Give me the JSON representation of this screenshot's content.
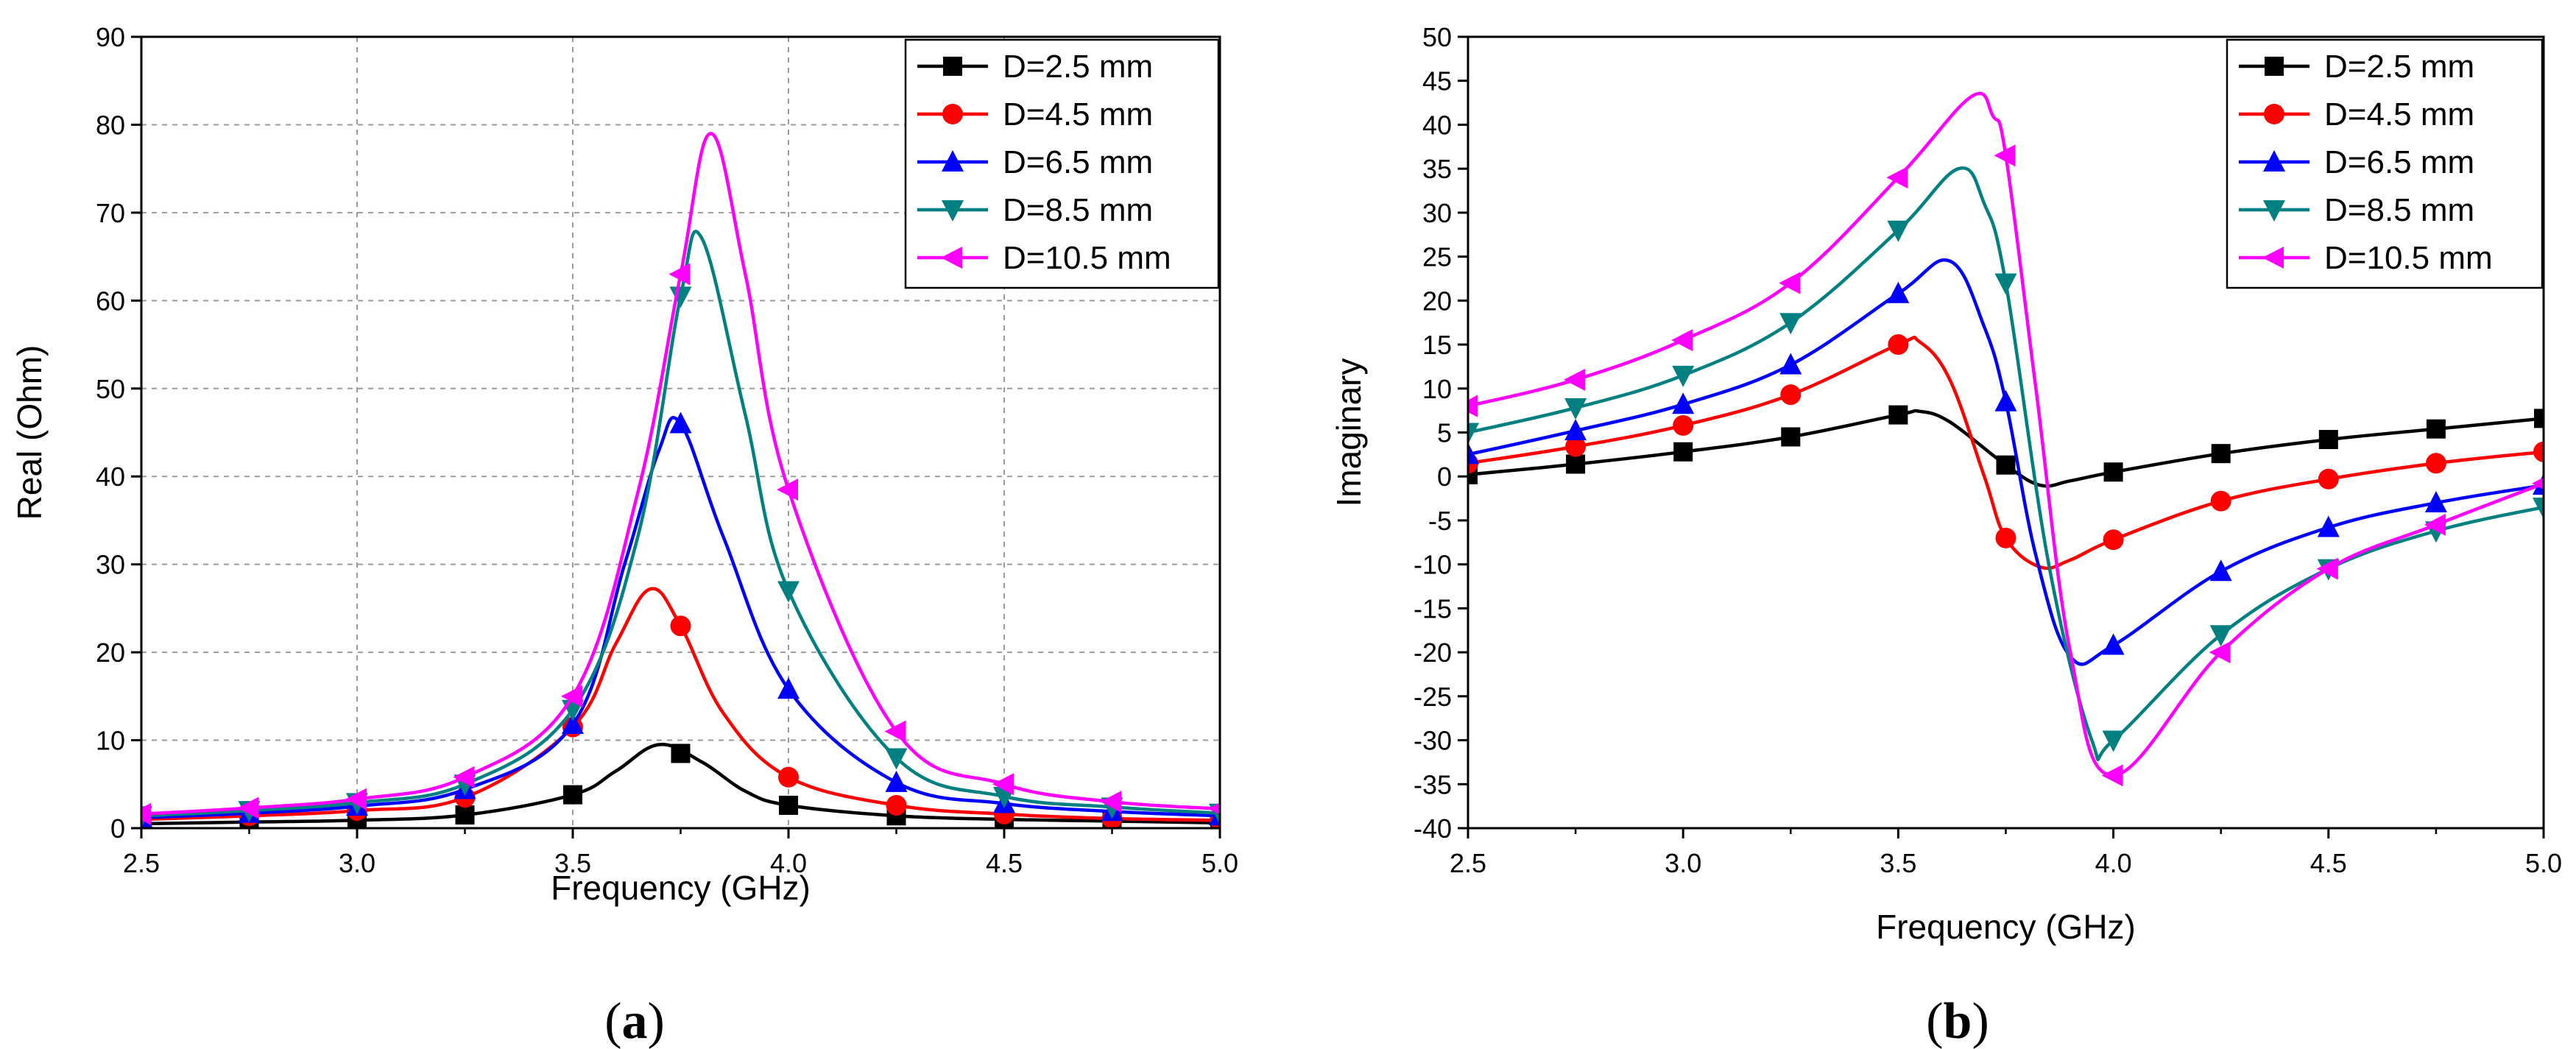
{
  "chart_data": [
    {
      "type": "line",
      "panel_label": {
        "prefix": "(",
        "letter": "a",
        "suffix": ")"
      },
      "title": "",
      "xlabel": "Frequency (GHz)",
      "ylabel": "Real (Ohm)",
      "xlim": [
        2.5,
        5.0
      ],
      "ylim": [
        0,
        90
      ],
      "xticks": [
        "2.5",
        "3.0",
        "3.5",
        "4.0",
        "4.5",
        "5.0"
      ],
      "yticks": [
        "0",
        "10",
        "20",
        "30",
        "40",
        "50",
        "60",
        "70",
        "80",
        "90"
      ],
      "grid": true,
      "legend_position": "top-right",
      "series": [
        {
          "name": "D=2.5 mm",
          "color": "#000000",
          "marker": "square",
          "x": [
            2.5,
            2.75,
            3.0,
            3.25,
            3.5,
            3.6,
            3.7,
            3.8,
            3.9,
            4.0,
            4.25,
            4.5,
            4.75,
            5.0
          ],
          "y": [
            0.5,
            0.7,
            0.9,
            1.5,
            3.8,
            6.5,
            9.5,
            7.5,
            4.2,
            2.6,
            1.4,
            1.0,
            0.8,
            0.6
          ],
          "marker_x": [
            2.5,
            2.75,
            3.0,
            3.25,
            3.5,
            3.75,
            4.0,
            4.25,
            4.5,
            4.75,
            5.0
          ]
        },
        {
          "name": "D=4.5 mm",
          "color": "#ff0000",
          "marker": "circle",
          "x": [
            2.5,
            2.75,
            3.0,
            3.25,
            3.5,
            3.6,
            3.68,
            3.75,
            3.85,
            4.0,
            4.25,
            4.5,
            4.75,
            5.0
          ],
          "y": [
            1.0,
            1.4,
            2.0,
            3.5,
            11.5,
            21.0,
            27.2,
            23.0,
            13.0,
            5.8,
            2.6,
            1.6,
            1.1,
            0.9
          ],
          "marker_x": [
            2.5,
            2.75,
            3.0,
            3.25,
            3.5,
            3.75,
            4.0,
            4.25,
            4.5,
            4.75,
            5.0
          ]
        },
        {
          "name": "D=6.5 mm",
          "color": "#0000ff",
          "marker": "triangle-up",
          "x": [
            2.5,
            2.75,
            3.0,
            3.25,
            3.5,
            3.62,
            3.7,
            3.75,
            3.85,
            4.0,
            4.25,
            4.5,
            4.75,
            5.0
          ],
          "y": [
            1.2,
            1.7,
            2.5,
            4.4,
            11.8,
            30.0,
            43.0,
            46.0,
            33.0,
            15.8,
            5.2,
            2.8,
            1.9,
            1.4
          ],
          "marker_x": [
            2.5,
            2.75,
            3.0,
            3.25,
            3.5,
            3.75,
            4.0,
            4.25,
            4.5,
            4.75,
            5.0
          ]
        },
        {
          "name": "D=8.5 mm",
          "color": "#008080",
          "marker": "triangle-down",
          "x": [
            2.5,
            2.75,
            3.0,
            3.25,
            3.5,
            3.65,
            3.75,
            3.8,
            3.9,
            4.0,
            4.25,
            4.5,
            4.75,
            5.0
          ],
          "y": [
            1.4,
            2.0,
            2.9,
            5.0,
            13.5,
            33.0,
            60.5,
            67.0,
            47.0,
            27.0,
            8.0,
            3.6,
            2.4,
            1.7
          ],
          "marker_x": [
            2.5,
            2.75,
            3.0,
            3.25,
            3.5,
            3.75,
            4.0,
            4.25,
            4.5,
            4.75,
            5.0
          ]
        },
        {
          "name": "D=10.5 mm",
          "color": "#ff00ff",
          "marker": "triangle-left",
          "x": [
            2.5,
            2.75,
            3.0,
            3.25,
            3.5,
            3.65,
            3.75,
            3.82,
            3.9,
            4.0,
            4.25,
            4.5,
            4.75,
            5.0
          ],
          "y": [
            1.6,
            2.3,
            3.3,
            5.8,
            15.0,
            38.0,
            63.0,
            79.0,
            63.0,
            38.5,
            11.0,
            5.0,
            3.0,
            2.2
          ],
          "marker_x": [
            2.5,
            2.75,
            3.0,
            3.25,
            3.5,
            3.75,
            4.0,
            4.25,
            4.5,
            4.75,
            5.0
          ]
        }
      ]
    },
    {
      "type": "line",
      "panel_label": {
        "prefix": "(",
        "letter": "b",
        "suffix": ")"
      },
      "title": "",
      "xlabel": "Frequency (GHz)",
      "ylabel": "Imaginary",
      "xlim": [
        2.5,
        5.0
      ],
      "ylim": [
        -40,
        50
      ],
      "xticks": [
        "2.5",
        "3.0",
        "3.5",
        "4.0",
        "4.5",
        "5.0"
      ],
      "yticks": [
        "-40",
        "-35",
        "-30",
        "-25",
        "-20",
        "-15",
        "-10",
        "-5",
        "0",
        "5",
        "10",
        "15",
        "20",
        "25",
        "30",
        "35",
        "40",
        "45",
        "50"
      ],
      "grid": false,
      "legend_position": "top-right",
      "series": [
        {
          "name": "D=2.5 mm",
          "color": "#000000",
          "marker": "square",
          "x": [
            2.5,
            2.75,
            3.0,
            3.25,
            3.5,
            3.55,
            3.62,
            3.75,
            3.83,
            3.9,
            4.0,
            4.25,
            4.5,
            4.75,
            5.0
          ],
          "y": [
            0.2,
            1.4,
            2.8,
            4.5,
            7.0,
            7.4,
            6.2,
            1.3,
            -1.0,
            -0.5,
            0.5,
            2.6,
            4.2,
            5.4,
            6.6
          ],
          "marker_x": [
            2.5,
            2.75,
            3.0,
            3.25,
            3.5,
            3.75,
            4.0,
            4.25,
            4.5,
            4.75,
            5.0
          ]
        },
        {
          "name": "D=4.5 mm",
          "color": "#ff0000",
          "marker": "circle",
          "x": [
            2.5,
            2.75,
            3.0,
            3.25,
            3.5,
            3.55,
            3.62,
            3.7,
            3.75,
            3.83,
            3.9,
            4.0,
            4.25,
            4.5,
            4.75,
            5.0
          ],
          "y": [
            1.5,
            3.4,
            5.8,
            9.3,
            15.0,
            15.3,
            11.0,
            0.0,
            -7.0,
            -10.3,
            -9.5,
            -7.2,
            -2.8,
            -0.3,
            1.5,
            2.8
          ],
          "marker_x": [
            2.5,
            2.75,
            3.0,
            3.25,
            3.5,
            3.75,
            4.0,
            4.25,
            4.5,
            4.75,
            5.0
          ]
        },
        {
          "name": "D=6.5 mm",
          "color": "#0000ff",
          "marker": "triangle-up",
          "x": [
            2.5,
            2.75,
            3.0,
            3.25,
            3.5,
            3.62,
            3.7,
            3.75,
            3.82,
            3.9,
            4.0,
            4.25,
            4.5,
            4.75,
            5.0
          ],
          "y": [
            2.5,
            5.2,
            8.2,
            12.7,
            20.8,
            24.5,
            17.0,
            8.5,
            -9.0,
            -20.5,
            -19.2,
            -10.8,
            -5.8,
            -3.0,
            -1.0
          ],
          "marker_x": [
            2.5,
            2.75,
            3.0,
            3.25,
            3.5,
            3.75,
            4.0,
            4.25,
            4.5,
            4.75,
            5.0
          ]
        },
        {
          "name": "D=8.5 mm",
          "color": "#008080",
          "marker": "triangle-down",
          "x": [
            2.5,
            2.75,
            3.0,
            3.25,
            3.5,
            3.64,
            3.7,
            3.75,
            3.85,
            3.95,
            4.0,
            4.25,
            4.5,
            4.75,
            5.0
          ],
          "y": [
            5.0,
            7.8,
            11.5,
            17.5,
            28.0,
            35.0,
            31.0,
            22.0,
            -10.0,
            -30.0,
            -30.0,
            -18.0,
            -10.5,
            -6.2,
            -3.5
          ],
          "marker_x": [
            2.5,
            2.75,
            3.0,
            3.25,
            3.5,
            3.75,
            4.0,
            4.25,
            4.5,
            4.75,
            5.0
          ]
        },
        {
          "name": "D=10.5 mm",
          "color": "#ff00ff",
          "marker": "triangle-left",
          "x": [
            2.5,
            2.75,
            3.0,
            3.25,
            3.5,
            3.67,
            3.72,
            3.75,
            3.82,
            3.9,
            4.0,
            4.25,
            4.5,
            4.75,
            5.0
          ],
          "y": [
            8.0,
            11.0,
            15.5,
            22.0,
            34.0,
            43.2,
            41.0,
            36.5,
            10.0,
            -20.0,
            -34.0,
            -20.0,
            -10.5,
            -5.5,
            -0.8
          ],
          "marker_x": [
            2.5,
            2.75,
            3.0,
            3.25,
            3.5,
            3.75,
            4.0,
            4.25,
            4.5,
            4.75,
            5.0
          ]
        }
      ]
    }
  ]
}
